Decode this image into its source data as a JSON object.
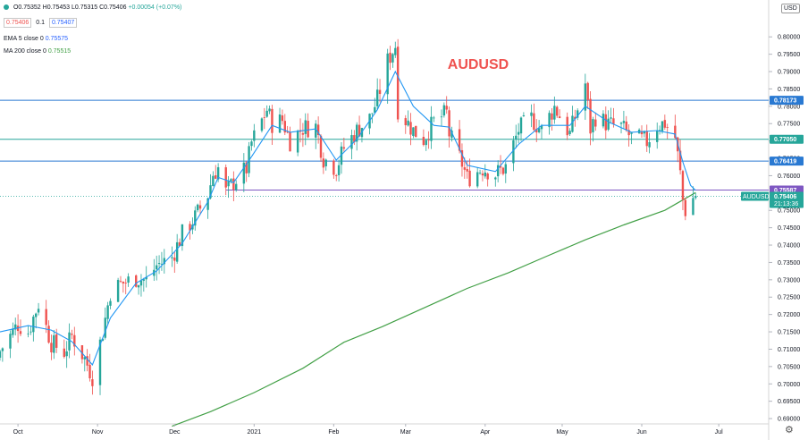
{
  "header": {
    "ohlc_open": "O0.75352",
    "ohlc_high": "H0.75453",
    "ohlc_low": "L0.75315",
    "ohlc_close": "C0.75406",
    "ohlc_change": "+0.00054 (+0.07%)",
    "bid": "0.75406",
    "spread": "0.1",
    "ask": "0.75407",
    "ema_label": "EMA 5 close 0",
    "ema_value": "0.75575",
    "ma_label": "MA 200 close 0",
    "ma_value": "0.75515",
    "currency": "USD"
  },
  "colors": {
    "up": "#26a69a",
    "down": "#ef5350",
    "ema": "#2196f3",
    "ma": "#43a047",
    "hline": "#2979d2",
    "hline_mid": "#26a69a",
    "purple": "#7e57c2",
    "title": "#ef5350"
  },
  "chart_data": {
    "type": "candlestick",
    "title": "AUDUSD",
    "symbol_label": "AUDUSD",
    "ylim": [
      0.6895,
      0.8065
    ],
    "y_ticks": [
      "0.80000",
      "0.79500",
      "0.79000",
      "0.78500",
      "0.78000",
      "0.77500",
      "0.77000",
      "0.76500",
      "0.76000",
      "0.75500",
      "0.75000",
      "0.74500",
      "0.74000",
      "0.73500",
      "0.73000",
      "0.72500",
      "0.72000",
      "0.71500",
      "0.71000",
      "0.70500",
      "0.70000",
      "0.69500",
      "0.69000"
    ],
    "x_ticks": [
      "Oct",
      "Nov",
      "Dec",
      "2021",
      "Feb",
      "Mar",
      "Apr",
      "May",
      "Jun",
      "Jul"
    ],
    "x_range": [
      "2020-09-24",
      "2021-07-10"
    ],
    "horizontal_levels": [
      {
        "price": 0.78173,
        "label": "0.78173",
        "style": "blue"
      },
      {
        "price": 0.7705,
        "label": "0.77050",
        "style": "teal"
      },
      {
        "price": 0.76419,
        "label": "0.76419",
        "style": "blue"
      },
      {
        "price": 0.75587,
        "label": "0.75587",
        "style": "purple",
        "from": "2020-12-21"
      }
    ],
    "current_price": {
      "price": 0.75406,
      "label": "0.75406",
      "countdown": "21:13:36"
    },
    "closes": [
      {
        "date": "2020-09-24",
        "close": 0.7095
      },
      {
        "date": "2020-10-01",
        "close": 0.7172
      },
      {
        "date": "2020-10-05",
        "close": 0.715
      },
      {
        "date": "2020-10-09",
        "close": 0.7232
      },
      {
        "date": "2020-10-14",
        "close": 0.7118
      },
      {
        "date": "2020-10-19",
        "close": 0.7092
      },
      {
        "date": "2020-10-22",
        "close": 0.7138
      },
      {
        "date": "2020-10-27",
        "close": 0.7072
      },
      {
        "date": "2020-10-30",
        "close": 0.7022
      },
      {
        "date": "2020-11-03",
        "close": 0.715
      },
      {
        "date": "2020-11-06",
        "close": 0.7265
      },
      {
        "date": "2020-11-10",
        "close": 0.7288
      },
      {
        "date": "2020-11-16",
        "close": 0.7305
      },
      {
        "date": "2020-11-20",
        "close": 0.7298
      },
      {
        "date": "2020-11-24",
        "close": 0.7342
      },
      {
        "date": "2020-11-30",
        "close": 0.7365
      },
      {
        "date": "2020-12-04",
        "close": 0.7432
      },
      {
        "date": "2020-12-09",
        "close": 0.748
      },
      {
        "date": "2020-12-14",
        "close": 0.7545
      },
      {
        "date": "2020-12-16",
        "close": 0.7605
      },
      {
        "date": "2020-12-18",
        "close": 0.7622
      },
      {
        "date": "2020-12-21",
        "close": 0.7552
      },
      {
        "date": "2020-12-24",
        "close": 0.7582
      },
      {
        "date": "2020-12-29",
        "close": 0.762
      },
      {
        "date": "2020-12-31",
        "close": 0.7695
      },
      {
        "date": "2021-01-06",
        "close": 0.779
      },
      {
        "date": "2021-01-08",
        "close": 0.775
      },
      {
        "date": "2021-01-12",
        "close": 0.776
      },
      {
        "date": "2021-01-15",
        "close": 0.77
      },
      {
        "date": "2021-01-20",
        "close": 0.7738
      },
      {
        "date": "2021-01-25",
        "close": 0.7742
      },
      {
        "date": "2021-01-28",
        "close": 0.765
      },
      {
        "date": "2021-02-02",
        "close": 0.7622
      },
      {
        "date": "2021-02-05",
        "close": 0.768
      },
      {
        "date": "2021-02-10",
        "close": 0.773
      },
      {
        "date": "2021-02-15",
        "close": 0.7765
      },
      {
        "date": "2021-02-18",
        "close": 0.782
      },
      {
        "date": "2021-02-22",
        "close": 0.793
      },
      {
        "date": "2021-02-25",
        "close": 0.7975
      },
      {
        "date": "2021-02-26",
        "close": 0.7792
      },
      {
        "date": "2021-03-04",
        "close": 0.773
      },
      {
        "date": "2021-03-08",
        "close": 0.7705
      },
      {
        "date": "2021-03-12",
        "close": 0.7755
      },
      {
        "date": "2021-03-17",
        "close": 0.778
      },
      {
        "date": "2021-03-18",
        "close": 0.772
      },
      {
        "date": "2021-03-23",
        "close": 0.7635
      },
      {
        "date": "2021-03-25",
        "close": 0.7592
      },
      {
        "date": "2021-03-31",
        "close": 0.7622
      },
      {
        "date": "2021-04-05",
        "close": 0.7605
      },
      {
        "date": "2021-04-09",
        "close": 0.7625
      },
      {
        "date": "2021-04-14",
        "close": 0.7732
      },
      {
        "date": "2021-04-19",
        "close": 0.7765
      },
      {
        "date": "2021-04-23",
        "close": 0.773
      },
      {
        "date": "2021-04-28",
        "close": 0.7798
      },
      {
        "date": "2021-05-04",
        "close": 0.772
      },
      {
        "date": "2021-05-10",
        "close": 0.7865
      },
      {
        "date": "2021-05-12",
        "close": 0.7735
      },
      {
        "date": "2021-05-14",
        "close": 0.777
      },
      {
        "date": "2021-05-19",
        "close": 0.7748
      },
      {
        "date": "2021-05-24",
        "close": 0.774
      },
      {
        "date": "2021-05-28",
        "close": 0.771
      },
      {
        "date": "2021-06-03",
        "close": 0.7698
      },
      {
        "date": "2021-06-07",
        "close": 0.7745
      },
      {
        "date": "2021-06-10",
        "close": 0.7752
      },
      {
        "date": "2021-06-14",
        "close": 0.771
      },
      {
        "date": "2021-06-16",
        "close": 0.7605
      },
      {
        "date": "2021-06-17",
        "close": 0.753
      },
      {
        "date": "2021-06-18",
        "close": 0.75
      },
      {
        "date": "2021-06-21",
        "close": 0.7535
      },
      {
        "date": "2021-06-22",
        "close": 0.7541
      }
    ],
    "ema5": [
      {
        "date": "2020-09-24",
        "value": 0.715
      },
      {
        "date": "2020-10-05",
        "value": 0.7168
      },
      {
        "date": "2020-10-14",
        "value": 0.7155
      },
      {
        "date": "2020-10-22",
        "value": 0.7122
      },
      {
        "date": "2020-10-30",
        "value": 0.7055
      },
      {
        "date": "2020-11-06",
        "value": 0.719
      },
      {
        "date": "2020-11-16",
        "value": 0.729
      },
      {
        "date": "2020-11-24",
        "value": 0.7325
      },
      {
        "date": "2020-12-04",
        "value": 0.7405
      },
      {
        "date": "2020-12-14",
        "value": 0.7525
      },
      {
        "date": "2020-12-18",
        "value": 0.7595
      },
      {
        "date": "2020-12-24",
        "value": 0.758
      },
      {
        "date": "2020-12-31",
        "value": 0.7655
      },
      {
        "date": "2021-01-08",
        "value": 0.7745
      },
      {
        "date": "2021-01-15",
        "value": 0.7725
      },
      {
        "date": "2021-01-25",
        "value": 0.7735
      },
      {
        "date": "2021-02-02",
        "value": 0.7645
      },
      {
        "date": "2021-02-10",
        "value": 0.7705
      },
      {
        "date": "2021-02-18",
        "value": 0.779
      },
      {
        "date": "2021-02-25",
        "value": 0.79
      },
      {
        "date": "2021-03-04",
        "value": 0.78
      },
      {
        "date": "2021-03-12",
        "value": 0.7745
      },
      {
        "date": "2021-03-18",
        "value": 0.774
      },
      {
        "date": "2021-03-25",
        "value": 0.763
      },
      {
        "date": "2021-04-05",
        "value": 0.7612
      },
      {
        "date": "2021-04-14",
        "value": 0.769
      },
      {
        "date": "2021-04-23",
        "value": 0.7745
      },
      {
        "date": "2021-05-04",
        "value": 0.7745
      },
      {
        "date": "2021-05-10",
        "value": 0.78
      },
      {
        "date": "2021-05-19",
        "value": 0.7755
      },
      {
        "date": "2021-05-28",
        "value": 0.7725
      },
      {
        "date": "2021-06-07",
        "value": 0.773
      },
      {
        "date": "2021-06-14",
        "value": 0.772
      },
      {
        "date": "2021-06-17",
        "value": 0.764
      },
      {
        "date": "2021-06-20",
        "value": 0.7572
      },
      {
        "date": "2021-06-22",
        "value": 0.75575
      }
    ],
    "ma200": [
      {
        "date": "2020-11-30",
        "value": 0.6878
      },
      {
        "date": "2020-12-15",
        "value": 0.692
      },
      {
        "date": "2021-01-01",
        "value": 0.6975
      },
      {
        "date": "2021-01-20",
        "value": 0.7045
      },
      {
        "date": "2021-02-05",
        "value": 0.712
      },
      {
        "date": "2021-02-20",
        "value": 0.7165
      },
      {
        "date": "2021-03-10",
        "value": 0.7225
      },
      {
        "date": "2021-03-25",
        "value": 0.7275
      },
      {
        "date": "2021-04-10",
        "value": 0.732
      },
      {
        "date": "2021-04-25",
        "value": 0.7368
      },
      {
        "date": "2021-05-10",
        "value": 0.7415
      },
      {
        "date": "2021-05-25",
        "value": 0.7458
      },
      {
        "date": "2021-06-10",
        "value": 0.75
      },
      {
        "date": "2021-06-22",
        "value": 0.75515
      }
    ]
  }
}
